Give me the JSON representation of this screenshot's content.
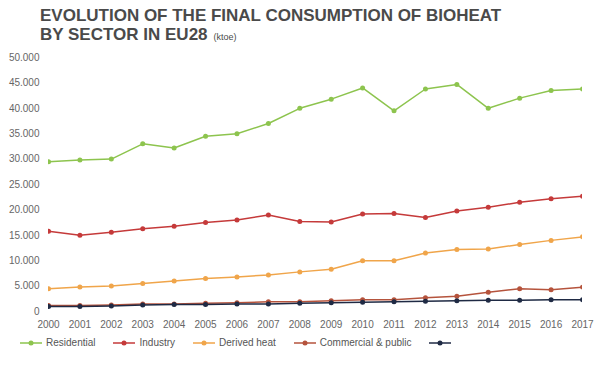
{
  "chart_data": {
    "type": "line",
    "title": "EVOLUTION OF THE FINAL CONSUMPTION OF BIOHEAT BY SECTOR IN EU28",
    "subtitle": "(ktoe)",
    "x": [
      2000,
      2001,
      2002,
      2003,
      2004,
      2005,
      2006,
      2007,
      2008,
      2009,
      2010,
      2011,
      2012,
      2013,
      2014,
      2015,
      2016,
      2017
    ],
    "series": [
      {
        "name": "Residential",
        "color": "#8dc44e",
        "values": [
          29500,
          29800,
          30000,
          33000,
          32200,
          34500,
          35000,
          37000,
          40000,
          41800,
          44000,
          39500,
          43800,
          44700,
          40000,
          42000,
          43500,
          43800
        ]
      },
      {
        "name": "Industry",
        "color": "#c53a3a",
        "values": [
          15800,
          15000,
          15600,
          16300,
          16800,
          17500,
          18000,
          19000,
          17700,
          17600,
          19200,
          19300,
          18500,
          19800,
          20500,
          21500,
          22200,
          22700
        ]
      },
      {
        "name": "Derived heat",
        "color": "#f0a54a",
        "values": [
          4500,
          4800,
          5000,
          5500,
          6000,
          6500,
          6800,
          7200,
          7800,
          8300,
          10000,
          10000,
          11500,
          12200,
          12300,
          13200,
          14000,
          14700
        ]
      },
      {
        "name": "Commercial & public",
        "color": "#b5533c",
        "values": [
          1200,
          1200,
          1300,
          1500,
          1500,
          1600,
          1700,
          1900,
          1900,
          2100,
          2300,
          2300,
          2700,
          3000,
          3800,
          4500,
          4300,
          4800
        ]
      },
      {
        "color": "#1f2a44",
        "values": [
          1000,
          1000,
          1100,
          1300,
          1400,
          1400,
          1500,
          1500,
          1600,
          1700,
          1800,
          1900,
          2000,
          2100,
          2200,
          2200,
          2300,
          2300
        ]
      }
    ],
    "xlim": [
      2000,
      2017
    ],
    "xticks": [
      2000,
      2001,
      2002,
      2003,
      2004,
      2005,
      2006,
      2007,
      2008,
      2009,
      2010,
      2011,
      2012,
      2013,
      2014,
      2015,
      2016,
      2017
    ],
    "ylim": [
      0,
      50000
    ],
    "yticks": [
      0,
      {
        "value": 5000,
        "label": "5.000"
      },
      {
        "value": 10000,
        "label": "10.000"
      },
      {
        "value": 15000,
        "label": "15.000"
      },
      {
        "value": 20000,
        "label": "20.000"
      },
      {
        "value": 25000,
        "label": "25.000"
      },
      {
        "value": 30000,
        "label": "30.000"
      },
      {
        "value": 35000,
        "label": "35.000"
      },
      {
        "value": 40000,
        "label": "40.000"
      },
      {
        "value": 45000,
        "label": "45.000"
      },
      {
        "value": 50000,
        "label": "50.000"
      }
    ],
    "grid": false,
    "marker": "circle",
    "legend": "bottom"
  }
}
